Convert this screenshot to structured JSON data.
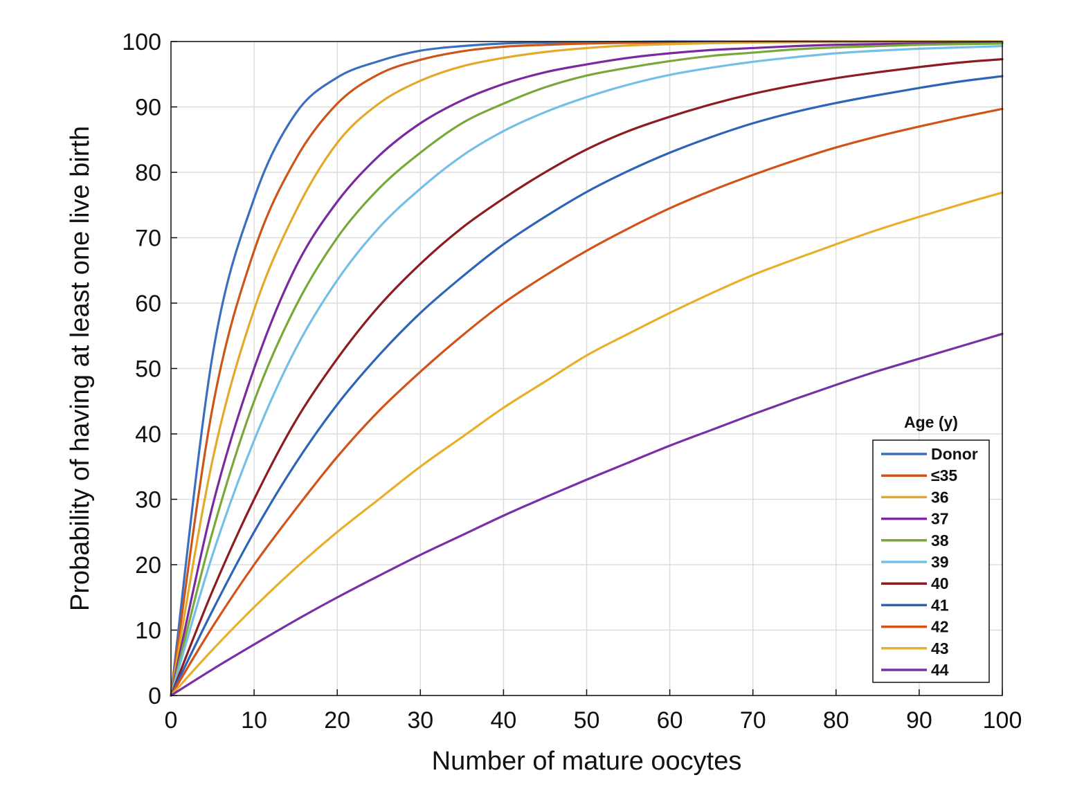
{
  "chart_data": {
    "type": "line",
    "title": "",
    "xlabel": "Number of mature oocytes",
    "ylabel": "Probability of having at least one live birth",
    "xlim": [
      0,
      100
    ],
    "ylim": [
      0,
      100
    ],
    "x_ticks": [
      0,
      10,
      20,
      30,
      40,
      50,
      60,
      70,
      80,
      90,
      100
    ],
    "y_ticks": [
      0,
      10,
      20,
      30,
      40,
      50,
      60,
      70,
      80,
      90,
      100
    ],
    "grid": true,
    "legend": {
      "title": "Age (y)",
      "position": "bottom-right"
    },
    "x": [
      0,
      5,
      10,
      15,
      20,
      25,
      30,
      35,
      40,
      45,
      50,
      55,
      60,
      65,
      70,
      75,
      80,
      85,
      90,
      95,
      100
    ],
    "series": [
      {
        "name": "Donor",
        "color": "#3a6fc0",
        "values": [
          0,
          52,
          76,
          89,
          94.5,
          97,
          98.6,
          99.3,
          99.7,
          99.85,
          99.9,
          99.95,
          100,
          100,
          100,
          100,
          100,
          100,
          100,
          100,
          100
        ]
      },
      {
        "name": "≤35",
        "color": "#cc5519",
        "values": [
          0,
          44,
          68,
          82,
          90.5,
          95,
          97.2,
          98.5,
          99.2,
          99.5,
          99.7,
          99.8,
          99.9,
          99.95,
          100,
          100,
          100,
          100,
          100,
          100,
          100
        ]
      },
      {
        "name": "36",
        "color": "#e3a92a",
        "values": [
          0,
          36,
          59,
          74,
          84.5,
          90.5,
          94,
          96.2,
          97.5,
          98.4,
          99,
          99.4,
          99.6,
          99.75,
          99.85,
          99.9,
          99.95,
          100,
          100,
          100,
          100
        ]
      },
      {
        "name": "37",
        "color": "#7a2a9e",
        "values": [
          0,
          29,
          50,
          65.5,
          75.5,
          82.5,
          87.5,
          91,
          93.5,
          95.3,
          96.5,
          97.5,
          98.2,
          98.7,
          99,
          99.3,
          99.5,
          99.6,
          99.7,
          99.75,
          99.8
        ]
      },
      {
        "name": "38",
        "color": "#79a83a",
        "values": [
          0,
          25,
          45,
          59.5,
          70,
          77.5,
          83,
          87.5,
          90.5,
          93,
          94.8,
          96,
          97,
          97.8,
          98.3,
          98.8,
          99.1,
          99.3,
          99.5,
          99.6,
          99.7
        ]
      },
      {
        "name": "39",
        "color": "#74bfe8",
        "values": [
          0,
          21.5,
          39,
          53,
          63.5,
          71.5,
          77.5,
          82.5,
          86.3,
          89.2,
          91.5,
          93.4,
          94.9,
          96,
          96.9,
          97.6,
          98.2,
          98.6,
          98.9,
          99.1,
          99.3
        ]
      },
      {
        "name": "40",
        "color": "#8c1c22",
        "values": [
          0,
          16,
          30,
          42,
          51.5,
          59.5,
          66,
          71.5,
          76,
          80,
          83.5,
          86.3,
          88.5,
          90.4,
          92,
          93.3,
          94.4,
          95.3,
          96.1,
          96.8,
          97.3
        ]
      },
      {
        "name": "41",
        "color": "#2c64b8",
        "values": [
          0,
          13,
          25,
          35.5,
          44.5,
          52,
          58.5,
          64,
          69,
          73.2,
          77,
          80.2,
          83,
          85.4,
          87.5,
          89.2,
          90.6,
          91.8,
          92.9,
          93.9,
          94.7
        ]
      },
      {
        "name": "42",
        "color": "#d1531a",
        "values": [
          0,
          10.5,
          20,
          28.5,
          36.5,
          43.5,
          49.5,
          55,
          60,
          64.2,
          68,
          71.4,
          74.5,
          77.2,
          79.6,
          81.8,
          83.8,
          85.5,
          87,
          88.4,
          89.7
        ]
      },
      {
        "name": "43",
        "color": "#e8b02a",
        "values": [
          0,
          7,
          13.5,
          19.5,
          25,
          30,
          35,
          39.5,
          44,
          48,
          52,
          55.3,
          58.5,
          61.5,
          64.3,
          66.7,
          69,
          71.2,
          73.2,
          75.1,
          76.9
        ]
      },
      {
        "name": "44",
        "color": "#7830a6",
        "values": [
          0,
          4,
          7.8,
          11.5,
          15,
          18.3,
          21.5,
          24.5,
          27.5,
          30.3,
          33,
          35.6,
          38.2,
          40.6,
          43,
          45.3,
          47.5,
          49.6,
          51.5,
          53.4,
          55.3
        ]
      }
    ]
  }
}
